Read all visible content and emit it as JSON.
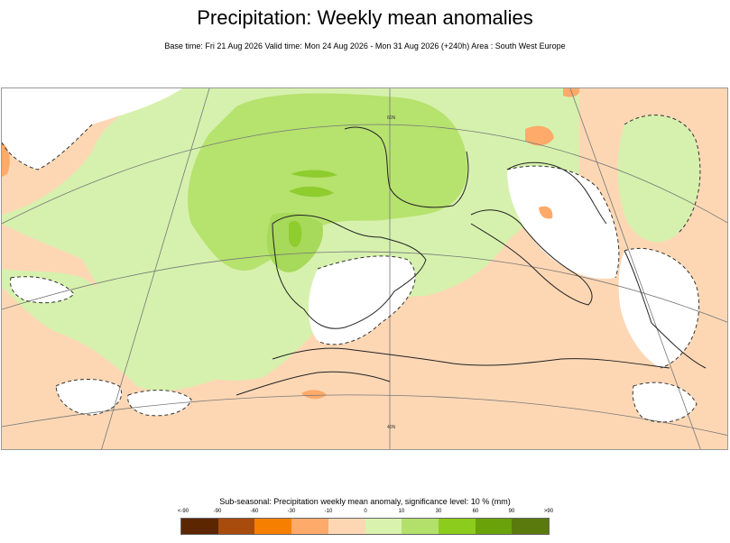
{
  "header": {
    "title": "Precipitation: Weekly mean anomalies",
    "subtitle": "Base time: Fri 21 Aug 2026 Valid time: Mon 24 Aug 2026 - Mon 31 Aug 2026 (+240h) Area : South West Europe"
  },
  "map": {
    "grid_labels": [
      "60N",
      "40N"
    ],
    "colors": {
      "ocean_land_positive": "#d6f1ad",
      "moderate_positive": "#b6e26e",
      "strong_positive": "#8fcc2e",
      "neutral": "#ffffff",
      "weak_negative": "#fdd7b4",
      "moderate_negative": "#fdaa6a",
      "coastline": "#222222",
      "graticule": "#777777"
    }
  },
  "legend": {
    "title": "Sub-seasonal: Precipitation weekly mean anomaly, significance level: 10 % (mm)",
    "ticks": [
      "<-90",
      "-90",
      "-60",
      "-30",
      "-10",
      "0",
      "10",
      "30",
      "60",
      "90",
      ">90"
    ],
    "colors": [
      "#5c2600",
      "#a84c0e",
      "#f77f00",
      "#fdaa6a",
      "#fdd7b4",
      "#d9f2ad",
      "#b2e06b",
      "#8ccc1c",
      "#6aa20a",
      "#5b7a0e"
    ]
  }
}
